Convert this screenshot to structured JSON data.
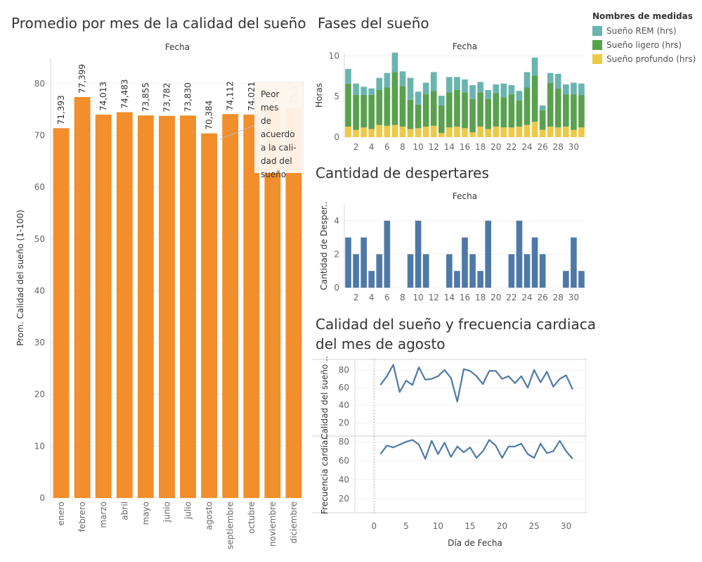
{
  "titles": {
    "monthly": "Promedio por mes de la calidad del sueño",
    "phases": "Fases del sueño",
    "awakenings": "Cantidad de despertares",
    "august_line1": "Calidad del sueño y frecuencia cardiaca",
    "august_line2": "del mes de agosto"
  },
  "legend": {
    "title": "Nombres de medidas",
    "items": [
      {
        "label": "Sueño REM (hrs)",
        "color": "#6ab4b0"
      },
      {
        "label": "Sueño ligero (hrs)",
        "color": "#59a14f"
      },
      {
        "label": "Sueño profundo (hrs)",
        "color": "#edc948"
      }
    ]
  },
  "tooltip": {
    "text_lines": [
      "Peor mes",
      "de",
      "acuerdo",
      "a la cali-",
      "dad del",
      "sueño"
    ]
  },
  "chart_data": [
    {
      "id": "monthly",
      "type": "bar",
      "header": "Fecha",
      "ylabel": "Prom. Calidad del sueño (1-100)",
      "ylim": [
        0,
        85
      ],
      "yticks": [
        0,
        10,
        20,
        30,
        40,
        50,
        60,
        70,
        80
      ],
      "color": "#f28e2b",
      "categories": [
        "enero",
        "febrero",
        "marzo",
        "abril",
        "mayo",
        "junio",
        "julio",
        "agosto",
        "septiembre",
        "octubre",
        "noviembre",
        "diciembre"
      ],
      "values": [
        71.393,
        77.399,
        74.013,
        74.483,
        73.855,
        73.782,
        73.83,
        70.384,
        74.112,
        74.021,
        75.2,
        75.3
      ],
      "labels": [
        "71,393",
        "77,399",
        "74,013",
        "74,483",
        "73,855",
        "73,782",
        "73,830",
        "70,384",
        "74,112",
        "74,021",
        "",
        "75,3"
      ]
    },
    {
      "id": "phases",
      "type": "bar",
      "stacked": true,
      "header": "Fecha",
      "ylabel": "Horas",
      "ylim": [
        0,
        10.3
      ],
      "yticks": [
        0,
        5,
        10
      ],
      "xticks": [
        2,
        4,
        6,
        8,
        10,
        12,
        14,
        16,
        18,
        20,
        22,
        24,
        26,
        28,
        30
      ],
      "x": [
        1,
        2,
        3,
        4,
        5,
        6,
        7,
        8,
        9,
        10,
        11,
        12,
        13,
        14,
        15,
        16,
        17,
        18,
        19,
        20,
        21,
        22,
        23,
        24,
        25,
        26,
        27,
        28,
        29,
        30,
        31
      ],
      "series": [
        {
          "name": "Sueño profundo (hrs)",
          "color": "#edc948",
          "values": [
            1.3,
            0.9,
            1.2,
            1.0,
            1.5,
            1.4,
            1.5,
            1.3,
            1.0,
            1.1,
            1.3,
            1.4,
            0.5,
            1.2,
            1.3,
            1.1,
            0.6,
            1.3,
            1.0,
            1.3,
            1.2,
            1.2,
            1.3,
            1.5,
            1.9,
            0.9,
            1.3,
            1.2,
            1.3,
            0.9,
            1.2
          ]
        },
        {
          "name": "Sueño ligero (hrs)",
          "color": "#59a14f",
          "values": [
            5.3,
            4.3,
            4.0,
            4.2,
            4.3,
            4.7,
            6.5,
            5.0,
            3.6,
            2.9,
            4.0,
            4.3,
            3.4,
            4.3,
            4.5,
            4.4,
            4.1,
            4.2,
            3.7,
            4.1,
            3.7,
            4.1,
            3.2,
            4.6,
            5.7,
            2.4,
            5.4,
            4.8,
            4.0,
            4.4,
            4.0
          ]
        },
        {
          "name": "Sueño REM (hrs)",
          "color": "#6ab4b0",
          "values": [
            1.8,
            1.4,
            1.0,
            0.8,
            1.5,
            1.8,
            2.4,
            1.8,
            2.7,
            1.6,
            1.4,
            2.3,
            1.2,
            1.9,
            1.6,
            1.6,
            1.7,
            1.3,
            1.1,
            1.1,
            1.7,
            1.1,
            1.2,
            1.9,
            2.2,
            0.6,
            1.2,
            1.8,
            1.2,
            1.4,
            1.4
          ]
        }
      ]
    },
    {
      "id": "awakenings",
      "type": "bar",
      "header": "Fecha",
      "ylabel": "Cantidad de Desper..",
      "ylim": [
        0,
        5
      ],
      "yticks": [
        0,
        2,
        4
      ],
      "xticks": [
        2,
        4,
        6,
        8,
        10,
        12,
        14,
        16,
        18,
        20,
        22,
        24,
        26,
        28,
        30
      ],
      "color": "#4e79a7",
      "x": [
        1,
        2,
        3,
        4,
        5,
        6,
        7,
        8,
        9,
        10,
        11,
        12,
        13,
        14,
        15,
        16,
        17,
        18,
        19,
        20,
        21,
        22,
        23,
        24,
        25,
        26,
        27,
        28,
        29,
        30,
        31
      ],
      "values": [
        3,
        2,
        3,
        1,
        2,
        4,
        0,
        0,
        2,
        4,
        2,
        0,
        0,
        2,
        1,
        3,
        2,
        1,
        4,
        0,
        0,
        2,
        4,
        2,
        3,
        2,
        0,
        0,
        1,
        3,
        1
      ]
    },
    {
      "id": "august",
      "type": "line",
      "xlabel": "Día de Fecha",
      "xlim": [
        -3,
        33
      ],
      "xticks": [
        0,
        5,
        10,
        15,
        20,
        25,
        30
      ],
      "color": "#4e79a7",
      "x": [
        1,
        2,
        3,
        4,
        5,
        6,
        7,
        8,
        9,
        10,
        11,
        12,
        13,
        14,
        15,
        16,
        17,
        18,
        19,
        20,
        21,
        22,
        23,
        24,
        25,
        26,
        27,
        28,
        29,
        30,
        31
      ],
      "panels": [
        {
          "name": "Calidad del sueño ..",
          "ylim": [
            5,
            92
          ],
          "yticks": [
            20,
            40,
            60,
            80
          ],
          "values": [
            63,
            73,
            86,
            55,
            68,
            63,
            83,
            69,
            70,
            73,
            80,
            71,
            44,
            81,
            79,
            73,
            64,
            79,
            79,
            70,
            73,
            65,
            73,
            60,
            80,
            66,
            78,
            61,
            70,
            74,
            58
          ]
        },
        {
          "name": "Frecuencia cardía..",
          "ylim": [
            5,
            86
          ],
          "yticks": [
            20,
            40,
            60,
            80
          ],
          "values": [
            67,
            76,
            74,
            77,
            80,
            82,
            77,
            62,
            81,
            67,
            79,
            64,
            75,
            69,
            74,
            63,
            70,
            82,
            76,
            63,
            75,
            75,
            78,
            67,
            63,
            78,
            68,
            70,
            81,
            70,
            62
          ]
        }
      ]
    }
  ]
}
